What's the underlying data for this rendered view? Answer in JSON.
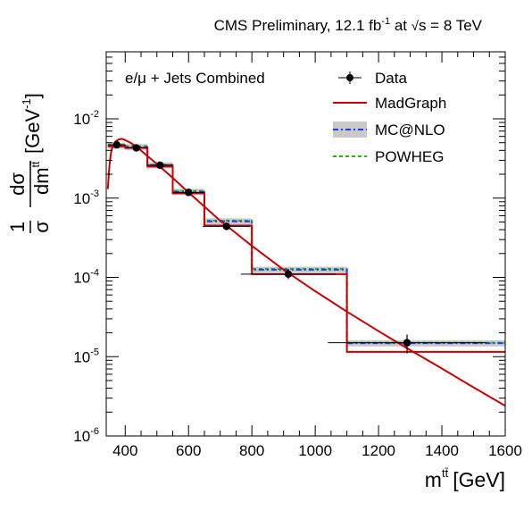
{
  "chart_data": {
    "type": "line",
    "title": {
      "prefix": "CMS Preliminary, 12.1 fb",
      "lumi_sup": "-1",
      "mid": " at ",
      "sqrt_arg": "s",
      "suffix": " = 8 TeV"
    },
    "annotation": "e/μ + Jets Combined",
    "xlabel": {
      "base": "m",
      "sup": "tt̄",
      "unit": "[GeV]"
    },
    "ylabel": {
      "one": "1",
      "sigma": "σ",
      "num": "dσ",
      "den": "dm",
      "den_sup": "tt̄",
      "unit_pre": "[GeV",
      "unit_sup": "-1",
      "unit_post": "]"
    },
    "x_range": [
      340,
      1600
    ],
    "y_range": [
      1e-06,
      0.07
    ],
    "y_scale": "log",
    "x_ticks": [
      "400",
      "600",
      "800",
      "1000",
      "1200",
      "1400",
      "1600"
    ],
    "y_ticks": [
      {
        "base": "10",
        "exp": "-6",
        "value": 1e-06
      },
      {
        "base": "10",
        "exp": "-5",
        "value": 1e-05
      },
      {
        "base": "10",
        "exp": "-4",
        "value": 0.0001
      },
      {
        "base": "10",
        "exp": "-3",
        "value": 0.001
      },
      {
        "base": "10",
        "exp": "-2",
        "value": 0.01
      }
    ],
    "bins": [
      345,
      400,
      470,
      550,
      650,
      800,
      1100,
      1600
    ],
    "legend": [
      {
        "key": "data",
        "label": "Data"
      },
      {
        "key": "madgraph",
        "label": "MadGraph"
      },
      {
        "key": "mcatnlo",
        "label": "MC@NLO"
      },
      {
        "key": "powheg",
        "label": "POWHEG"
      }
    ],
    "legend_position": "top-right",
    "series": [
      {
        "key": "data",
        "points": [
          {
            "x": 373,
            "y": 0.0047,
            "xerr": 27,
            "yerr": 0.0004
          },
          {
            "x": 435,
            "y": 0.0043,
            "xerr": 35,
            "yerr": 0.0003
          },
          {
            "x": 510,
            "y": 0.0026,
            "xerr": 40,
            "yerr": 0.0002
          },
          {
            "x": 600,
            "y": 0.00118,
            "xerr": 50,
            "yerr": 0.0001
          },
          {
            "x": 720,
            "y": 0.00044,
            "xerr": 75,
            "yerr": 4e-05
          },
          {
            "x": 915,
            "y": 0.00011,
            "xerr": 150,
            "yerr": 1.5e-05
          },
          {
            "x": 1290,
            "y": 1.5e-05,
            "xerr": 250,
            "yerr": 4e-06
          }
        ]
      },
      {
        "key": "madgraph",
        "bin_values": [
          0.0045,
          0.0043,
          0.0025,
          0.00115,
          0.00045,
          0.00011,
          1.15e-05
        ]
      },
      {
        "key": "mcatnlo",
        "bin_values": [
          0.0046,
          0.0044,
          0.0026,
          0.0012,
          0.00051,
          0.000125,
          1.48e-05
        ]
      },
      {
        "key": "powheg",
        "bin_values": [
          0.0047,
          0.0045,
          0.00262,
          0.00123,
          0.00052,
          0.000128,
          1.5e-05
        ]
      },
      {
        "key": "madgraph_curve",
        "points": [
          [
            345,
            0.0013
          ],
          [
            350,
            0.0025
          ],
          [
            355,
            0.0037
          ],
          [
            360,
            0.0045
          ],
          [
            370,
            0.0052
          ],
          [
            380,
            0.0055
          ],
          [
            390,
            0.0056
          ],
          [
            400,
            0.0054
          ],
          [
            420,
            0.0049
          ],
          [
            440,
            0.0043
          ],
          [
            470,
            0.0034
          ],
          [
            500,
            0.0027
          ],
          [
            550,
            0.0018
          ],
          [
            600,
            0.00118
          ],
          [
            650,
            0.00078
          ],
          [
            700,
            0.00052
          ],
          [
            750,
            0.00036
          ],
          [
            800,
            0.00025
          ],
          [
            900,
            0.000125
          ],
          [
            1000,
            6.7e-05
          ],
          [
            1100,
            3.7e-05
          ],
          [
            1200,
            2.1e-05
          ],
          [
            1300,
            1.21e-05
          ],
          [
            1400,
            7.1e-06
          ],
          [
            1500,
            4.1e-06
          ],
          [
            1600,
            2.4e-06
          ]
        ]
      }
    ],
    "mcatnlo_band_rel": 0.09,
    "colors": {
      "madgraph": "#cc0000",
      "mcatnlo": "#1a3cff",
      "powheg": "#22bb00",
      "band": "#c9c9c9",
      "data": "#000000"
    }
  }
}
